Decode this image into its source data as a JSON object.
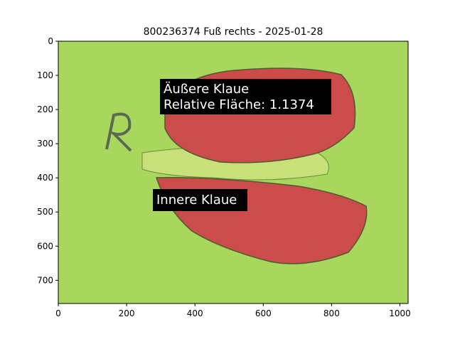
{
  "chart_data": {
    "type": "image",
    "title": "800236374 Fuß rechts - 2025-01-28",
    "xlim": [
      0,
      1024
    ],
    "ylim": [
      768,
      0
    ],
    "xticks": [
      0,
      200,
      400,
      600,
      800,
      1000
    ],
    "yticks": [
      0,
      100,
      200,
      300,
      400,
      500,
      600,
      700
    ],
    "annotations": [
      [
        "Äußere Klaue",
        "Relative Fläche: 1.1374"
      ],
      [
        "Innere Klaue"
      ]
    ]
  }
}
